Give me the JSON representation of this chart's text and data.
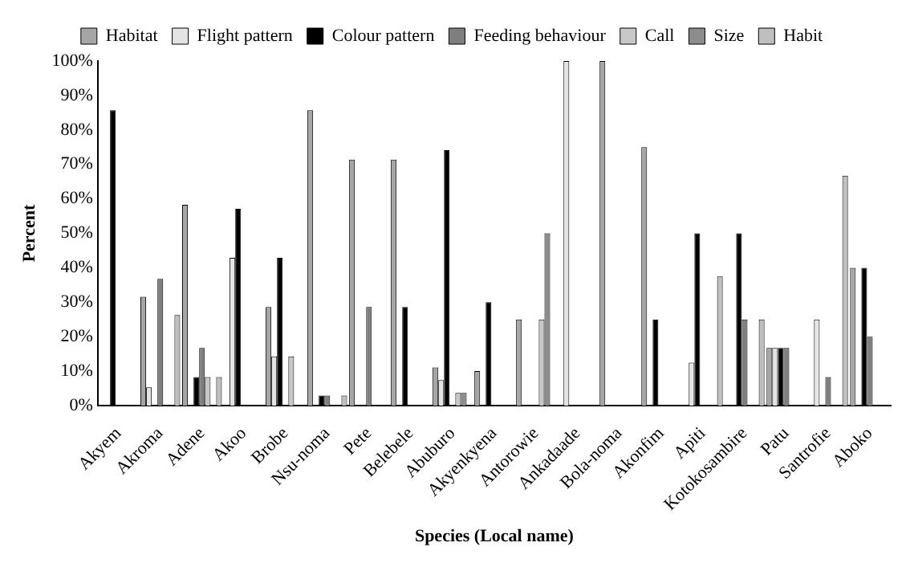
{
  "chart_data": {
    "type": "bar",
    "xlabel": "Species (Local name)",
    "ylabel": "Percent",
    "categories": [
      "Akyem",
      "Akroma",
      "Adene",
      "Akoo",
      "Brobe",
      "Nsu-noma",
      "Pete",
      "Belebele",
      "Abuburo",
      "Akyenkyena",
      "Antorowie",
      "Ankadaade",
      "Bola-noma",
      "Akonfim",
      "Apiti",
      "Kotokosambire",
      "Patu",
      "Santrofie",
      "Aboko"
    ],
    "series": [
      {
        "name": "Habitat",
        "color": "#a6a6a6",
        "values": [
          null,
          31.6,
          58.3,
          null,
          28.6,
          85.7,
          71.4,
          71.4,
          11.1,
          10,
          25,
          null,
          100,
          75,
          null,
          null,
          16.7,
          null,
          40
        ]
      },
      {
        "name": "Flight pattern",
        "color": "#e4e4e4",
        "values": [
          null,
          5.3,
          null,
          42.9,
          14.3,
          null,
          null,
          null,
          7.4,
          null,
          null,
          100,
          null,
          null,
          12.5,
          null,
          16.7,
          25,
          null
        ]
      },
      {
        "name": "Colour pattern",
        "color": "#000000",
        "values": [
          85.7,
          null,
          8.3,
          57.1,
          42.9,
          2.9,
          null,
          28.6,
          74.1,
          30,
          null,
          null,
          null,
          25,
          50,
          50,
          16.7,
          null,
          40
        ]
      },
      {
        "name": "Feeding behaviour",
        "color": "#7f7f7f",
        "values": [
          null,
          36.8,
          16.7,
          null,
          null,
          2.9,
          28.6,
          null,
          null,
          null,
          null,
          null,
          null,
          null,
          null,
          25,
          16.7,
          8.3,
          20
        ]
      },
      {
        "name": "Call",
        "color": "#c8c8c8",
        "values": [
          null,
          null,
          8.3,
          null,
          14.3,
          null,
          null,
          null,
          3.7,
          null,
          25,
          null,
          null,
          null,
          null,
          null,
          null,
          null,
          null
        ]
      },
      {
        "name": "Size",
        "color": "#8c8c8c",
        "values": [
          null,
          null,
          null,
          null,
          null,
          null,
          null,
          null,
          3.7,
          null,
          50,
          null,
          null,
          null,
          null,
          null,
          null,
          null,
          null
        ]
      },
      {
        "name": "Habit",
        "color": "#bfbfbf",
        "values": [
          null,
          26.3,
          8.3,
          null,
          null,
          2.9,
          null,
          null,
          null,
          null,
          null,
          null,
          null,
          null,
          37.5,
          25,
          null,
          66.7,
          null
        ]
      }
    ],
    "ylim": [
      0,
      100
    ],
    "yticks": [
      {
        "value": 0,
        "label": "0%"
      },
      {
        "value": 10,
        "label": "10%"
      },
      {
        "value": 20,
        "label": "20%"
      },
      {
        "value": 30,
        "label": "30%"
      },
      {
        "value": 40,
        "label": "40%"
      },
      {
        "value": 50,
        "label": "50%"
      },
      {
        "value": 60,
        "label": "60%"
      },
      {
        "value": 70,
        "label": "70%"
      },
      {
        "value": 80,
        "label": "80%"
      },
      {
        "value": 90,
        "label": "90%"
      },
      {
        "value": 100,
        "label": "100%"
      }
    ],
    "grid": false,
    "legend": "top"
  }
}
